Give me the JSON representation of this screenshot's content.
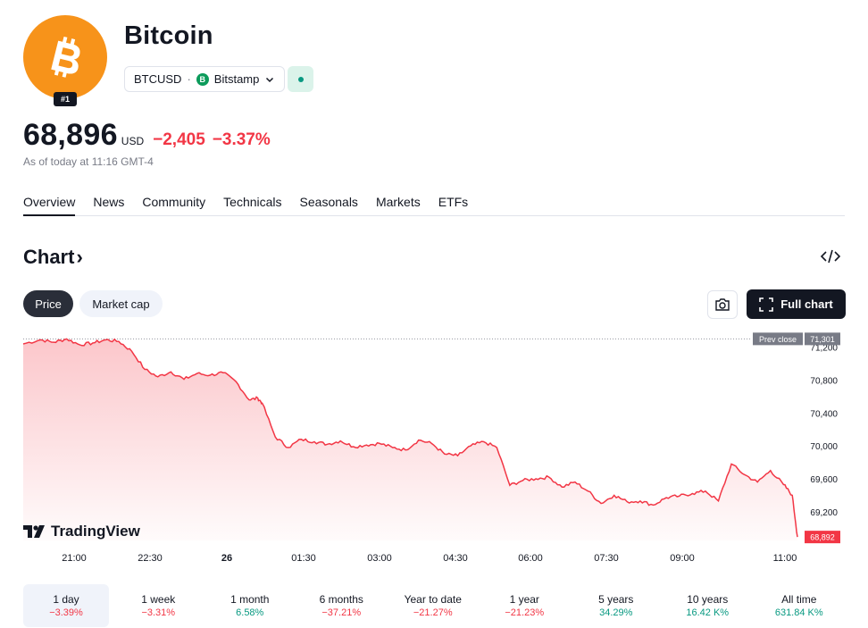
{
  "asset": {
    "name": "Bitcoin",
    "rank": "#1",
    "symbol": "BTCUSD",
    "separator": "·",
    "exchange": "Bitstamp",
    "exchange_icon_letter": "B",
    "brand_color": "#f7931a"
  },
  "quote": {
    "price": "68,896",
    "currency": "USD",
    "change_abs": "−2,405",
    "change_pct": "−3.37%",
    "as_of": "As of today at 11:16 GMT-4"
  },
  "tabs": [
    "Overview",
    "News",
    "Community",
    "Technicals",
    "Seasonals",
    "Markets",
    "ETFs"
  ],
  "chart_section": {
    "heading": "Chart",
    "heading_arrow": "›",
    "toggles": [
      "Price",
      "Market cap"
    ],
    "full_chart_label": "Full chart",
    "watermark": "TradingView"
  },
  "chart_data": {
    "type": "area",
    "x_ticks": [
      "21:00",
      "22:30",
      "26",
      "01:30",
      "03:00",
      "04:30",
      "06:00",
      "07:30",
      "09:00",
      "11:00"
    ],
    "y_ticks": [
      "71,200",
      "70,800",
      "70,400",
      "70,000",
      "69,600",
      "69,200"
    ],
    "y_tick_values": [
      71200,
      70800,
      70400,
      70000,
      69600,
      69200
    ],
    "ylim": [
      68850,
      71370
    ],
    "prev_close": {
      "label": "Prev close",
      "value": "71,301",
      "numeric": 71301
    },
    "last_price": {
      "label": "68,892",
      "numeric": 68892
    },
    "line_color": "#f23645",
    "series": [
      {
        "x": [
          "20:25",
          "20:45",
          "21:00",
          "21:15",
          "21:30",
          "21:45",
          "22:00",
          "22:15",
          "22:30",
          "22:45",
          "23:00",
          "23:15",
          "23:30",
          "23:45",
          "00:00",
          "00:15",
          "00:30",
          "00:45",
          "00:55",
          "01:00",
          "01:15",
          "01:30",
          "01:45",
          "02:00",
          "02:15",
          "02:30",
          "02:45",
          "03:00",
          "03:15",
          "03:30",
          "03:45",
          "04:00",
          "04:15",
          "04:30",
          "04:45",
          "05:00",
          "05:15",
          "05:30",
          "05:45",
          "06:00",
          "06:15",
          "06:30",
          "06:45",
          "07:00",
          "07:15",
          "07:30",
          "07:45",
          "08:00",
          "08:15",
          "08:30",
          "08:45",
          "09:00",
          "09:15",
          "09:30",
          "09:45",
          "10:00",
          "10:15",
          "10:30",
          "10:45",
          "11:00",
          "11:10",
          "11:16"
        ],
        "y": [
          71240,
          71290,
          71260,
          71300,
          71230,
          71250,
          71290,
          71270,
          71150,
          70930,
          70840,
          70900,
          70810,
          70880,
          70860,
          70890,
          70780,
          70560,
          70580,
          70520,
          70110,
          69980,
          70080,
          70050,
          70020,
          70060,
          69990,
          70010,
          70030,
          69980,
          69950,
          70070,
          70030,
          69900,
          69880,
          70000,
          70050,
          69980,
          69520,
          69580,
          69600,
          69620,
          69500,
          69560,
          69450,
          69300,
          69400,
          69320,
          69330,
          69280,
          69370,
          69390,
          69420,
          69450,
          69330,
          69780,
          69650,
          69560,
          69700,
          69530,
          69400,
          68892
        ]
      }
    ]
  },
  "ranges": [
    {
      "label": "1 day",
      "value": "−3.39%",
      "sign": "neg"
    },
    {
      "label": "1 week",
      "value": "−3.31%",
      "sign": "neg"
    },
    {
      "label": "1 month",
      "value": "6.58%",
      "sign": "pos"
    },
    {
      "label": "6 months",
      "value": "−37.21%",
      "sign": "neg"
    },
    {
      "label": "Year to date",
      "value": "−21.27%",
      "sign": "neg"
    },
    {
      "label": "1 year",
      "value": "−21.23%",
      "sign": "neg"
    },
    {
      "label": "5 years",
      "value": "34.29%",
      "sign": "pos"
    },
    {
      "label": "10 years",
      "value": "16.42 K%",
      "sign": "pos"
    },
    {
      "label": "All time",
      "value": "631.84 K%",
      "sign": "pos"
    }
  ]
}
